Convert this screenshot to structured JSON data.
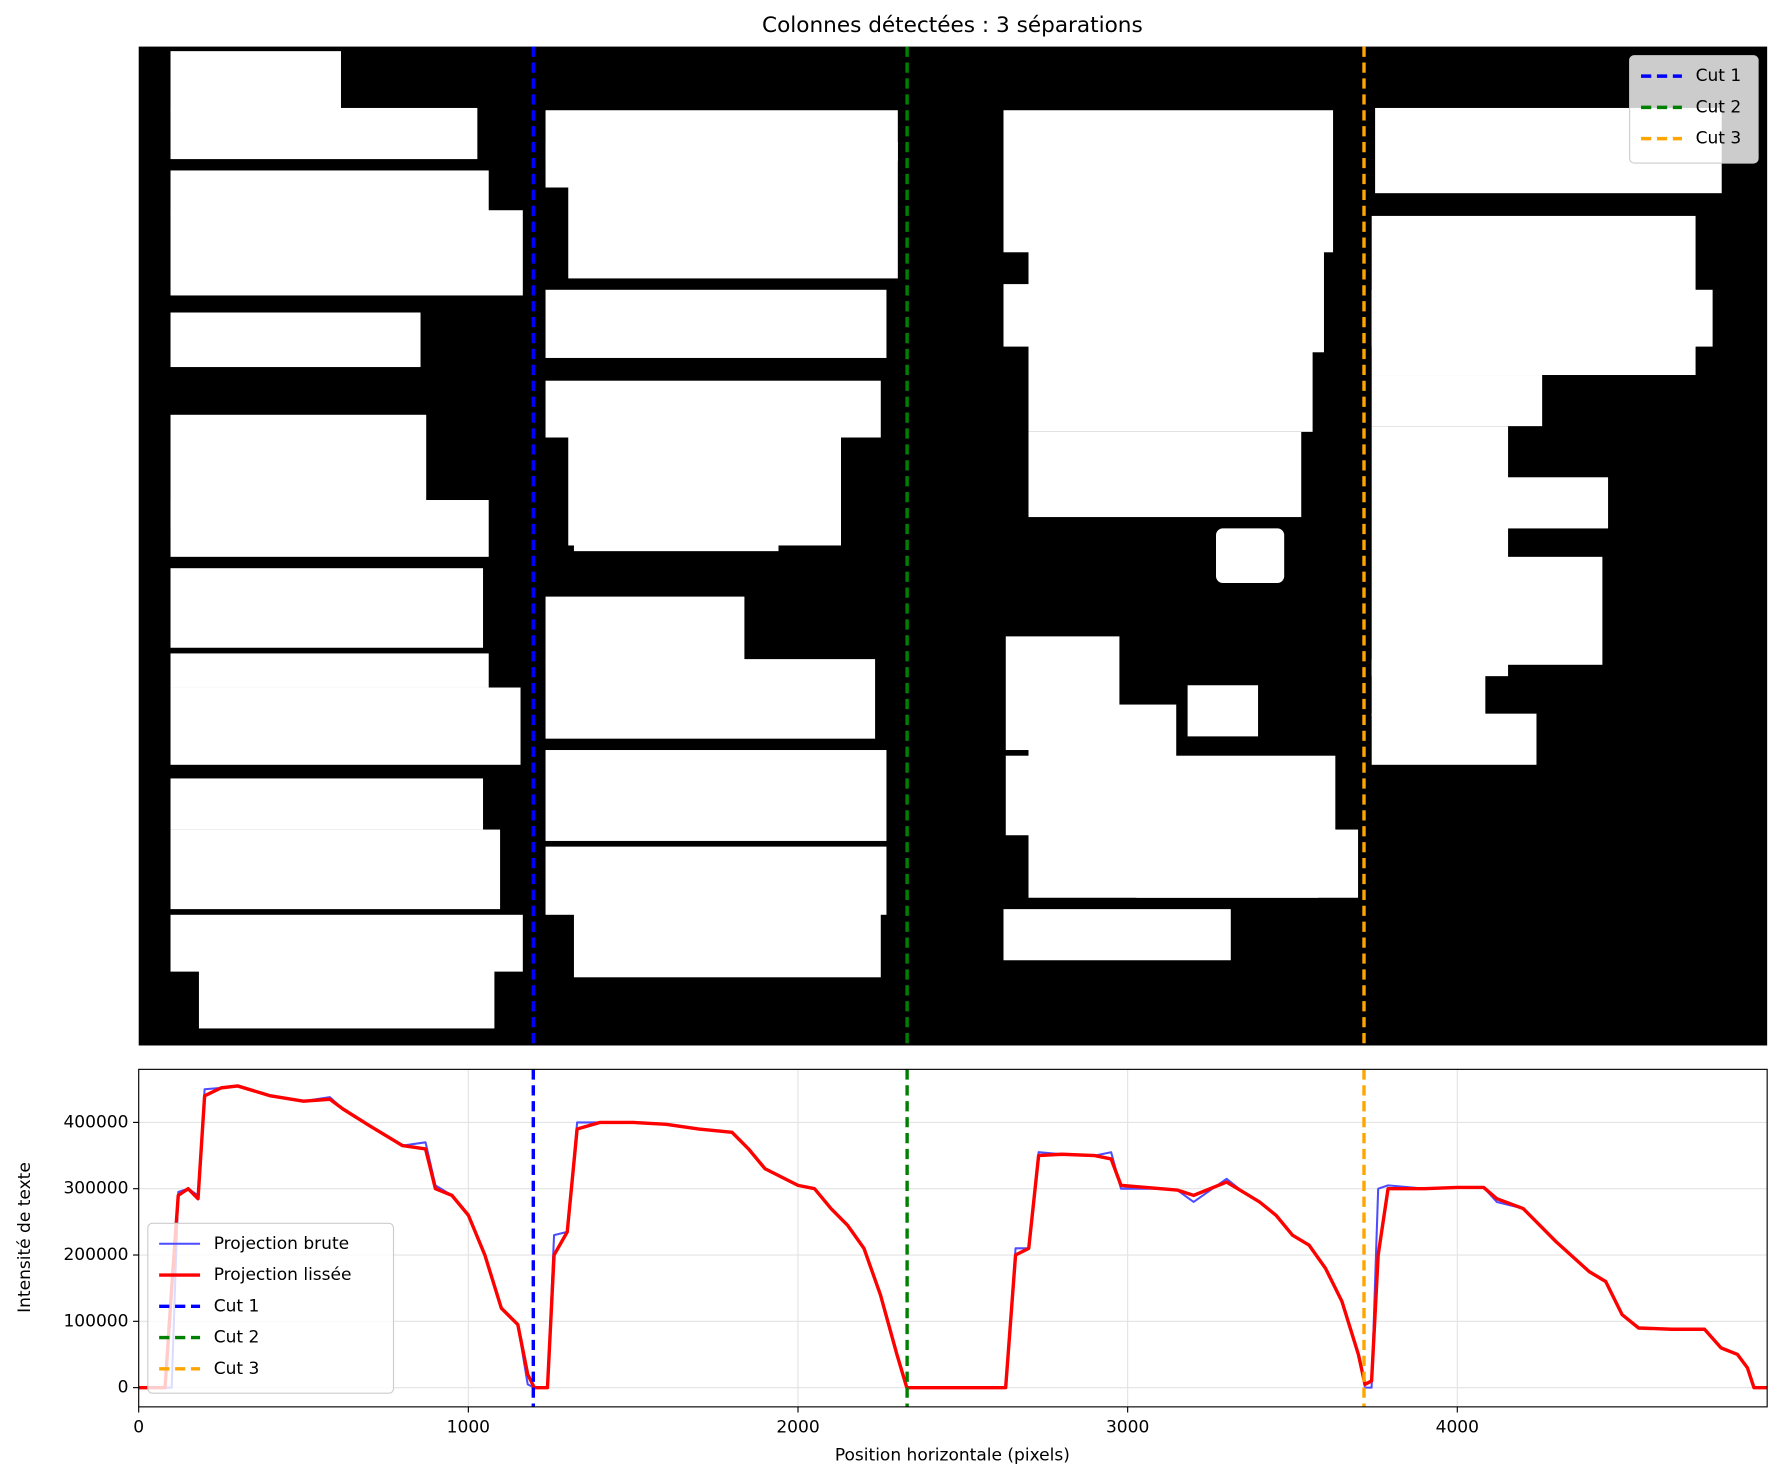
{
  "chart_data": [
    {
      "type": "image",
      "title": "Colonnes détectées : 3 séparations",
      "xlim": [
        0,
        4940
      ],
      "legend": "upper right",
      "cuts": [
        {
          "name": "Cut 1",
          "x": 1197,
          "color": "#0000ff"
        },
        {
          "name": "Cut 2",
          "x": 2331,
          "color": "#008000"
        },
        {
          "name": "Cut 3",
          "x": 3717,
          "color": "#ffa500"
        }
      ]
    },
    {
      "type": "line",
      "xlabel": "Position horizontale (pixels)",
      "ylabel": "Intensité de texte",
      "xlim": [
        0,
        4940
      ],
      "xticks": [
        0,
        1000,
        2000,
        3000,
        4000
      ],
      "ylim": [
        -29000,
        480000
      ],
      "yticks": [
        0,
        100000,
        200000,
        300000,
        400000
      ],
      "grid": true,
      "legend": "lower left",
      "x": [
        0,
        80,
        100,
        120,
        150,
        180,
        200,
        250,
        300,
        400,
        500,
        580,
        620,
        700,
        800,
        870,
        900,
        950,
        1000,
        1050,
        1100,
        1150,
        1180,
        1200,
        1240,
        1260,
        1300,
        1330,
        1400,
        1500,
        1600,
        1700,
        1800,
        1850,
        1900,
        2000,
        2050,
        2100,
        2150,
        2200,
        2250,
        2300,
        2330,
        2400,
        2600,
        2630,
        2660,
        2700,
        2730,
        2800,
        2900,
        2950,
        2980,
        3100,
        3150,
        3200,
        3300,
        3350,
        3400,
        3450,
        3500,
        3550,
        3600,
        3650,
        3700,
        3720,
        3740,
        3760,
        3790,
        3900,
        4000,
        4080,
        4120,
        4200,
        4300,
        4400,
        4450,
        4500,
        4550,
        4650,
        4750,
        4800,
        4850,
        4880,
        4900,
        4940
      ],
      "series": [
        {
          "name": "Projection brute",
          "color": "#4d4dff",
          "width": 1.8,
          "values": [
            0,
            0,
            0,
            295000,
            300000,
            290000,
            450000,
            452000,
            455000,
            440000,
            432000,
            438000,
            420000,
            395000,
            365000,
            370000,
            305000,
            290000,
            260000,
            200000,
            120000,
            95000,
            5000,
            0,
            0,
            230000,
            235000,
            400000,
            400000,
            400000,
            397000,
            390000,
            385000,
            360000,
            330000,
            305000,
            300000,
            270000,
            245000,
            210000,
            140000,
            50000,
            0,
            0,
            0,
            0,
            210000,
            210000,
            355000,
            352000,
            350000,
            355000,
            300000,
            300000,
            298000,
            280000,
            315000,
            295000,
            280000,
            260000,
            230000,
            215000,
            180000,
            130000,
            50000,
            0,
            0,
            300000,
            305000,
            300000,
            302000,
            302000,
            280000,
            270000,
            220000,
            175000,
            160000,
            110000,
            90000,
            88000,
            88000,
            60000,
            50000,
            30000,
            0,
            0
          ]
        },
        {
          "name": "Projection lissée",
          "color": "#ff0000",
          "width": 3,
          "values": [
            0,
            0,
            150000,
            290000,
            300000,
            285000,
            440000,
            452000,
            455000,
            440000,
            432000,
            435000,
            420000,
            395000,
            365000,
            360000,
            300000,
            290000,
            260000,
            200000,
            120000,
            95000,
            20000,
            0,
            0,
            200000,
            235000,
            390000,
            400000,
            400000,
            397000,
            390000,
            385000,
            360000,
            330000,
            305000,
            300000,
            270000,
            245000,
            210000,
            140000,
            50000,
            0,
            0,
            0,
            0,
            200000,
            210000,
            350000,
            352000,
            350000,
            345000,
            305000,
            300000,
            298000,
            290000,
            310000,
            295000,
            280000,
            260000,
            230000,
            215000,
            180000,
            130000,
            50000,
            5000,
            10000,
            200000,
            300000,
            300000,
            302000,
            302000,
            285000,
            270000,
            220000,
            175000,
            160000,
            110000,
            90000,
            88000,
            88000,
            60000,
            50000,
            30000,
            0,
            0
          ]
        }
      ],
      "cuts": [
        {
          "name": "Cut 1",
          "x": 1197,
          "color": "#0000ff"
        },
        {
          "name": "Cut 2",
          "x": 2331,
          "color": "#008000"
        },
        {
          "name": "Cut 3",
          "x": 3717,
          "color": "#ffa500"
        }
      ]
    }
  ]
}
